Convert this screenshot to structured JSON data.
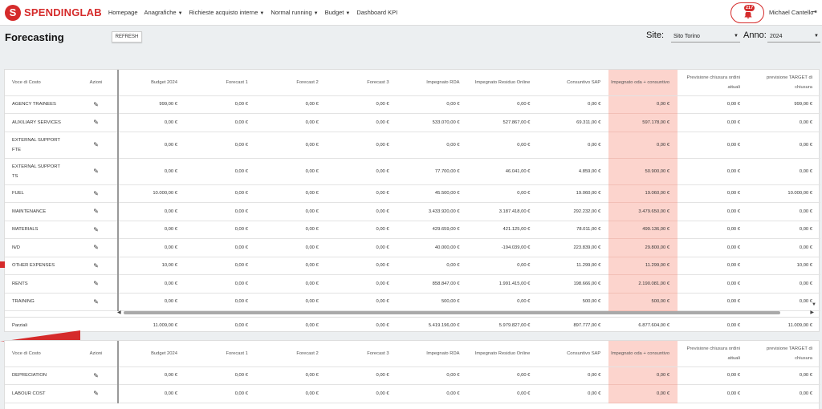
{
  "navbar": {
    "logo_letter": "S",
    "brand": "SPENDINGLAB",
    "items": [
      {
        "label": "Homepage",
        "dropdown": false
      },
      {
        "label": "Anagrafiche",
        "dropdown": true
      },
      {
        "label": "Richieste acquisto interne",
        "dropdown": true
      },
      {
        "label": "Normal running",
        "dropdown": true
      },
      {
        "label": "Budget",
        "dropdown": true
      },
      {
        "label": "Dashboard KPI",
        "dropdown": false
      }
    ],
    "notification_count": "217",
    "user_name": "Michael Cantello",
    "icons": {
      "bell": "bell-icon",
      "logout": "logout-icon"
    }
  },
  "header": {
    "title": "Forecasting",
    "refresh_label": "REFRESH",
    "site_label": "Site:",
    "site_value": "Sito Torino",
    "anno_label": "Anno:",
    "anno_value": "2024"
  },
  "colors": {
    "accent": "#d52b2b",
    "highlight": "#fcd4cd"
  },
  "table1": {
    "columns": [
      "Voce di Costo",
      "Azioni",
      "Budget 2024",
      "Forecast 1",
      "Forecast 2",
      "Forecast 3",
      "Impegnato RDA",
      "Impegnato Residuo Online",
      "Consuntivo SAP",
      "Impegnato oda + consuntivo",
      "Previsione chiusura ordini attuali",
      "previsione TARGET di chiusura"
    ],
    "rows": [
      {
        "voce": "AGENCY TRAINEES",
        "values": [
          "999,00 €",
          "0,00 €",
          "0,00 €",
          "0,00 €",
          "0,00 €",
          "0,00 €",
          "0,00 €",
          "0,00 €",
          "0,00 €",
          "999,00 €"
        ]
      },
      {
        "voce": "AUXILIARY SERVICES",
        "values": [
          "0,00 €",
          "0,00 €",
          "0,00 €",
          "0,00 €",
          "533.070,00 €",
          "527.867,00 €",
          "69.311,00 €",
          "597.178,00 €",
          "0,00 €",
          "0,00 €"
        ]
      },
      {
        "voce": "EXTERNAL SUPPORT FTE",
        "values": [
          "0,00 €",
          "0,00 €",
          "0,00 €",
          "0,00 €",
          "0,00 €",
          "0,00 €",
          "0,00 €",
          "0,00 €",
          "0,00 €",
          "0,00 €"
        ]
      },
      {
        "voce": "EXTERNAL SUPPORT TS",
        "values": [
          "0,00 €",
          "0,00 €",
          "0,00 €",
          "0,00 €",
          "77.700,00 €",
          "46.041,00 €",
          "4.859,00 €",
          "50.900,00 €",
          "0,00 €",
          "0,00 €"
        ]
      },
      {
        "voce": "FUEL",
        "values": [
          "10.000,00 €",
          "0,00 €",
          "0,00 €",
          "0,00 €",
          "45.500,00 €",
          "0,00 €",
          "19.060,00 €",
          "19.060,00 €",
          "0,00 €",
          "10.000,00 €"
        ]
      },
      {
        "voce": "MAINTENANCE",
        "values": [
          "0,00 €",
          "0,00 €",
          "0,00 €",
          "0,00 €",
          "3.433.920,00 €",
          "3.187.418,00 €",
          "292.232,00 €",
          "3.479.650,00 €",
          "0,00 €",
          "0,00 €"
        ]
      },
      {
        "voce": "MATERIALS",
        "values": [
          "0,00 €",
          "0,00 €",
          "0,00 €",
          "0,00 €",
          "429.659,00 €",
          "421.125,00 €",
          "78.011,00 €",
          "499.136,00 €",
          "0,00 €",
          "0,00 €"
        ]
      },
      {
        "voce": "N/D",
        "values": [
          "0,00 €",
          "0,00 €",
          "0,00 €",
          "0,00 €",
          "40.000,00 €",
          "-194.039,00 €",
          "223.839,00 €",
          "29.800,00 €",
          "0,00 €",
          "0,00 €"
        ]
      },
      {
        "voce": "OTHER EXPENSES",
        "values": [
          "10,00 €",
          "0,00 €",
          "0,00 €",
          "0,00 €",
          "0,00 €",
          "0,00 €",
          "11.299,00 €",
          "11.299,00 €",
          "0,00 €",
          "10,00 €"
        ]
      },
      {
        "voce": "RENTS",
        "values": [
          "0,00 €",
          "0,00 €",
          "0,00 €",
          "0,00 €",
          "858.847,00 €",
          "1.991.415,00 €",
          "198.666,00 €",
          "2.190.081,00 €",
          "0,00 €",
          "0,00 €"
        ]
      },
      {
        "voce": "TRAINING",
        "values": [
          "0,00 €",
          "0,00 €",
          "0,00 €",
          "0,00 €",
          "500,00 €",
          "0,00 €",
          "500,00 €",
          "500,00 €",
          "0,00 €",
          "0,00 €"
        ]
      }
    ],
    "totals": {
      "label": "Parziali",
      "values": [
        "11.009,00 €",
        "0,00 €",
        "0,00 €",
        "0,00 €",
        "5.419.196,00 €",
        "5.979.827,00 €",
        "897.777,00 €",
        "6.877.604,00 €",
        "0,00 €",
        "11.009,00 €"
      ]
    }
  },
  "table2": {
    "columns": [
      "Voce di Costo",
      "Azioni",
      "Budget 2024",
      "Forecast 1",
      "Forecast 2",
      "Forecast 3",
      "Impegnato RDA",
      "Impegnato Residuo Online",
      "Consuntivo SAP",
      "Impegnato oda + consuntivo",
      "Previsione chiusura ordini attuali",
      "previsione TARGET di chiusura"
    ],
    "rows": [
      {
        "voce": "DEPRECIATION",
        "values": [
          "0,00 €",
          "0,00 €",
          "0,00 €",
          "0,00 €",
          "0,00 €",
          "0,00 €",
          "0,00 €",
          "0,00 €",
          "0,00 €",
          "0,00 €"
        ]
      },
      {
        "voce": "LABOUR COST",
        "values": [
          "0,00 €",
          "0,00 €",
          "0,00 €",
          "0,00 €",
          "0,00 €",
          "0,00 €",
          "0,00 €",
          "0,00 €",
          "0,00 €",
          "0,00 €"
        ]
      }
    ]
  }
}
